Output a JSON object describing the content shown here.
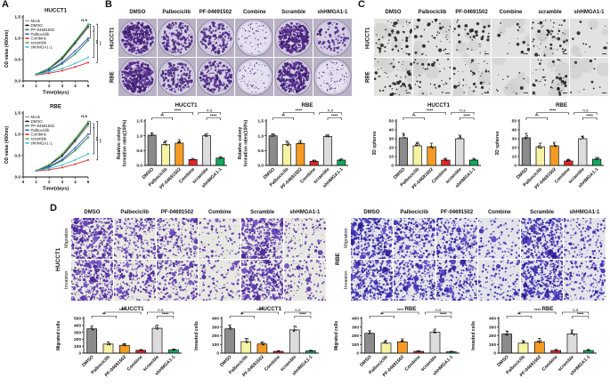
{
  "panelA": {
    "label": "A",
    "xlabel": "Time(days)",
    "ylabel": "OD value (450nm)"
  },
  "panelB": {
    "label": "B",
    "col_headers": [
      "DMSO",
      "Palbociclib",
      "PF-04691502",
      "Combine",
      "Scramble",
      "shHMGA1-1"
    ],
    "row_labels": [
      "HUCCT1",
      "RBE"
    ],
    "image_density": [
      [
        0.95,
        0.55,
        0.5,
        0.1,
        0.88,
        0.22
      ],
      [
        0.92,
        0.5,
        0.62,
        0.08,
        0.85,
        0.14
      ]
    ]
  },
  "panelC": {
    "label": "C",
    "col_headers": [
      "DMSO",
      "Palbociclib",
      "PF-04691502",
      "Combine",
      "scramble",
      "shHMGA1-1"
    ],
    "row_labels": [
      "HUCCT1",
      "RBE"
    ],
    "sphere_counts": [
      [
        30,
        22,
        21,
        7,
        30,
        6
      ],
      [
        28,
        20,
        22,
        6,
        28,
        5
      ]
    ]
  },
  "panelD": {
    "label": "D",
    "groups": [
      {
        "name": "HUCCT1",
        "col_headers": [
          "DMSO",
          "Palbociclib",
          "PF-04691502",
          "Combine",
          "Scramble",
          "shHMGA1-1"
        ],
        "row_labels": [
          "Migration",
          "Invasion"
        ],
        "image_density": [
          [
            0.92,
            0.45,
            0.42,
            0.15,
            0.95,
            0.18
          ],
          [
            0.88,
            0.52,
            0.48,
            0.18,
            0.9,
            0.22
          ]
        ],
        "stain": "violet"
      },
      {
        "name": "RBE",
        "col_headers": [
          "DMSO",
          "Palbociclib",
          "PF-04691502",
          "Combine",
          "Scramble",
          "shHMGA1-1"
        ],
        "row_labels": [
          "Migration",
          "Invasion"
        ],
        "image_density": [
          [
            0.85,
            0.55,
            0.5,
            0.15,
            0.82,
            0.25
          ],
          [
            0.9,
            0.55,
            0.55,
            0.22,
            0.88,
            0.3
          ]
        ],
        "stain": "blue"
      }
    ]
  },
  "colors": {
    "crystal_violet": "#5a2c90",
    "bar_palette": [
      "#8b8b8b",
      "#f6f3a2",
      "#f59b23",
      "#e62528",
      "#dcdcdc",
      "#12a95c"
    ]
  },
  "chart_data": [
    {
      "id": "growth-hucct1",
      "type": "line",
      "title": "HUCCT1",
      "xlabel": "Time(days)",
      "ylabel": "OD value (450nm)",
      "x": [
        1,
        2,
        3,
        4,
        5
      ],
      "xlim": [
        0,
        5
      ],
      "ylim": [
        0,
        1.5
      ],
      "yticks": [
        0,
        0.5,
        1,
        1.5
      ],
      "xticks": [
        0,
        1,
        2,
        3,
        4,
        5
      ],
      "series": [
        {
          "name": "Mock",
          "color": "#9b9b9b",
          "values": [
            0.16,
            0.28,
            0.5,
            0.86,
            1.24
          ]
        },
        {
          "name": "DMSO",
          "color": "#141414",
          "values": [
            0.16,
            0.29,
            0.53,
            0.9,
            1.28
          ]
        },
        {
          "name": "PF-04691502",
          "color": "#1e7d46",
          "values": [
            0.15,
            0.24,
            0.4,
            0.63,
            0.95
          ]
        },
        {
          "name": "Palbociclib",
          "color": "#2d4ec8",
          "values": [
            0.15,
            0.25,
            0.43,
            0.7,
            1.0
          ]
        },
        {
          "name": "Combine",
          "color": "#e62528",
          "values": [
            0.14,
            0.18,
            0.24,
            0.33,
            0.43
          ]
        },
        {
          "name": "scramble",
          "color": "#3fae49",
          "values": [
            0.16,
            0.3,
            0.56,
            0.93,
            1.33
          ]
        },
        {
          "name": "shHMGA1-1",
          "color": "#3bbcd0",
          "values": [
            0.15,
            0.21,
            0.29,
            0.41,
            0.55
          ]
        }
      ],
      "annotation": "n.s",
      "right_brackets": [
        {
          "label": "*",
          "from": "scramble",
          "to": "Palbociclib"
        },
        {
          "label": "***",
          "from": "DMSO",
          "to": "shHMGA1-1"
        },
        {
          "label": "***",
          "from": "scramble",
          "to": "Combine"
        }
      ]
    },
    {
      "id": "growth-rbe",
      "type": "line",
      "title": "RBE",
      "xlabel": "Time(days)",
      "ylabel": "OD value (450nm)",
      "x": [
        1,
        2,
        3,
        4,
        5
      ],
      "xlim": [
        0,
        5
      ],
      "ylim": [
        0,
        1.5
      ],
      "yticks": [
        0,
        0.5,
        1,
        1.5
      ],
      "xticks": [
        0,
        1,
        2,
        3,
        4,
        5
      ],
      "series": [
        {
          "name": "Mock",
          "color": "#9b9b9b",
          "values": [
            0.15,
            0.27,
            0.48,
            0.82,
            1.2
          ]
        },
        {
          "name": "DMSO",
          "color": "#141414",
          "values": [
            0.15,
            0.28,
            0.5,
            0.86,
            1.25
          ]
        },
        {
          "name": "PF-04691502",
          "color": "#1e7d46",
          "values": [
            0.15,
            0.23,
            0.38,
            0.62,
            0.93
          ]
        },
        {
          "name": "Palbociclib",
          "color": "#2d4ec8",
          "values": [
            0.15,
            0.24,
            0.41,
            0.68,
            1.0
          ]
        },
        {
          "name": "Combine",
          "color": "#e62528",
          "values": [
            0.14,
            0.17,
            0.22,
            0.3,
            0.4
          ]
        },
        {
          "name": "scramble",
          "color": "#3fae49",
          "values": [
            0.15,
            0.29,
            0.54,
            0.9,
            1.3
          ]
        },
        {
          "name": "shHMGA1-1",
          "color": "#3bbcd0",
          "values": [
            0.15,
            0.2,
            0.28,
            0.4,
            0.54
          ]
        }
      ],
      "annotation": "n.s",
      "right_brackets": [
        {
          "label": "*",
          "from": "scramble",
          "to": "Palbociclib"
        },
        {
          "label": "***",
          "from": "DMSO",
          "to": "shHMGA1-1"
        },
        {
          "label": "***",
          "from": "scramble",
          "to": "Combine"
        }
      ]
    },
    {
      "id": "colony-hucct1",
      "type": "bar",
      "title": "HUCCT1",
      "ylabel": "Relative colony formation rates(100%)",
      "categories": [
        "DMSO",
        "Palbociclib",
        "PF-04691502",
        "Combine",
        "scramble",
        "shHMGA1-1"
      ],
      "values": [
        1.02,
        0.7,
        0.75,
        0.2,
        1.0,
        0.25
      ],
      "errors": [
        0.08,
        0.13,
        0.12,
        0.04,
        0.07,
        0.05
      ],
      "ylim": [
        0,
        1.5
      ],
      "yticks": [
        0,
        0.5,
        1,
        1.5
      ],
      "colors": [
        "#8b8b8b",
        "#f6f3a2",
        "#f59b23",
        "#e62528",
        "#dcdcdc",
        "#12a95c"
      ],
      "sig": [
        {
          "x1": 0,
          "x2": 1.5,
          "label": "**",
          "tier": 1
        },
        {
          "x1": 0.75,
          "x2": 3,
          "label": "****",
          "tier": 2
        },
        {
          "x1": 3.4,
          "x2": 5,
          "label": "n.s",
          "tier": 2
        },
        {
          "x1": 4,
          "x2": 5,
          "label": "****",
          "tier": 1
        }
      ]
    },
    {
      "id": "colony-rbe",
      "type": "bar",
      "title": "RBE",
      "ylabel": "Relative colony formation rates(100%)",
      "categories": [
        "DMSO",
        "Palbociclib",
        "PF-04691502",
        "Combine",
        "scramble",
        "shHMGA1-1"
      ],
      "values": [
        1.0,
        0.7,
        0.74,
        0.14,
        0.98,
        0.18
      ],
      "errors": [
        0.07,
        0.12,
        0.1,
        0.04,
        0.06,
        0.04
      ],
      "ylim": [
        0,
        1.5
      ],
      "yticks": [
        0,
        0.5,
        1,
        1.5
      ],
      "colors": [
        "#8b8b8b",
        "#f6f3a2",
        "#f59b23",
        "#e62528",
        "#dcdcdc",
        "#12a95c"
      ],
      "sig": [
        {
          "x1": 0,
          "x2": 1.5,
          "label": "**",
          "tier": 1
        },
        {
          "x1": 0.75,
          "x2": 3,
          "label": "****",
          "tier": 2
        },
        {
          "x1": 3.4,
          "x2": 5,
          "label": "n.s",
          "tier": 2
        },
        {
          "x1": 4,
          "x2": 5,
          "label": "****",
          "tier": 1
        }
      ]
    },
    {
      "id": "spheres-hucct1",
      "type": "bar",
      "title": "HUCCT1",
      "ylabel": "3D spheres",
      "categories": [
        "DMSO",
        "Palbociclib",
        "PF-04691502",
        "Combine",
        "scramble",
        "shHMGA1-1"
      ],
      "values": [
        31,
        22,
        21,
        6,
        30,
        6
      ],
      "errors": [
        5,
        4,
        4,
        2,
        4,
        2
      ],
      "ylim": [
        0,
        50
      ],
      "yticks": [
        0,
        10,
        20,
        30,
        40,
        50
      ],
      "colors": [
        "#8b8b8b",
        "#f6f3a2",
        "#f59b23",
        "#e62528",
        "#dcdcdc",
        "#12a95c"
      ],
      "sig": [
        {
          "x1": 0,
          "x2": 1.5,
          "label": "**",
          "tier": 1
        },
        {
          "x1": 0.75,
          "x2": 3,
          "label": "****",
          "tier": 2
        },
        {
          "x1": 3.4,
          "x2": 5,
          "label": "n.s",
          "tier": 2
        },
        {
          "x1": 4,
          "x2": 5,
          "label": "****",
          "tier": 1
        }
      ]
    },
    {
      "id": "spheres-rbe",
      "type": "bar",
      "title": "RBE",
      "ylabel": "3D spheres",
      "categories": [
        "DMSO",
        "Palbociclib",
        "PF-04691502",
        "Combine",
        "scramble",
        "shHMGA1-1"
      ],
      "values": [
        31,
        21,
        22,
        5,
        30,
        7
      ],
      "errors": [
        5,
        4,
        4,
        2,
        3,
        2
      ],
      "ylim": [
        0,
        50
      ],
      "yticks": [
        0,
        10,
        20,
        30,
        40,
        50
      ],
      "colors": [
        "#8b8b8b",
        "#f6f3a2",
        "#f59b23",
        "#e62528",
        "#dcdcdc",
        "#12a95c"
      ],
      "sig": [
        {
          "x1": 0,
          "x2": 1.5,
          "label": "**",
          "tier": 1
        },
        {
          "x1": 0.75,
          "x2": 3,
          "label": "****",
          "tier": 2
        },
        {
          "x1": 3.4,
          "x2": 5,
          "label": "n.s",
          "tier": 2
        },
        {
          "x1": 4,
          "x2": 5,
          "label": "****",
          "tier": 1
        }
      ]
    },
    {
      "id": "migration-hucct1",
      "type": "bar",
      "title": "HUCCT1",
      "ylabel": "Migrated cells",
      "categories": [
        "DMSO",
        "Palbociclib",
        "PF-04691502",
        "Combine",
        "scramble",
        "shHMGA1-1"
      ],
      "values": [
        350,
        130,
        112,
        40,
        358,
        45
      ],
      "errors": [
        40,
        32,
        25,
        12,
        45,
        14
      ],
      "ylim": [
        0,
        500
      ],
      "yticks": [
        0,
        100,
        200,
        300,
        400,
        500
      ],
      "colors": [
        "#8b8b8b",
        "#f6f3a2",
        "#f59b23",
        "#e62528",
        "#dcdcdc",
        "#12a95c"
      ],
      "sig": [
        {
          "x1": 0,
          "x2": 1.5,
          "label": "**",
          "tier": 1
        },
        {
          "x1": 0.75,
          "x2": 3,
          "label": "****",
          "tier": 2
        },
        {
          "x1": 3.4,
          "x2": 5,
          "label": "n.s",
          "tier": 2
        },
        {
          "x1": 4,
          "x2": 5,
          "label": "****",
          "tier": 1
        }
      ]
    },
    {
      "id": "invasion-hucct1",
      "type": "bar",
      "title": "HUCCT1",
      "ylabel": "Invasted cells",
      "categories": [
        "DMSO",
        "Palbociclib",
        "PF-04691502",
        "Combine",
        "scramble",
        "shHMGA1-1"
      ],
      "values": [
        280,
        132,
        105,
        20,
        268,
        25
      ],
      "errors": [
        45,
        38,
        25,
        8,
        42,
        8
      ],
      "ylim": [
        0,
        400
      ],
      "yticks": [
        0,
        100,
        200,
        300,
        400
      ],
      "colors": [
        "#8b8b8b",
        "#f6f3a2",
        "#f59b23",
        "#e62528",
        "#dcdcdc",
        "#12a95c"
      ],
      "sig": [
        {
          "x1": 0,
          "x2": 1.5,
          "label": "**",
          "tier": 1
        },
        {
          "x1": 0.75,
          "x2": 3,
          "label": "****",
          "tier": 2
        },
        {
          "x1": 3.4,
          "x2": 5,
          "label": "n.s",
          "tier": 2
        },
        {
          "x1": 4,
          "x2": 5,
          "label": "****",
          "tier": 1
        }
      ]
    },
    {
      "id": "migration-rbe",
      "type": "bar",
      "title": "RBE",
      "ylabel": "Migrated cells",
      "categories": [
        "DMSO",
        "Palbociclib",
        "PF-04691502",
        "Combine",
        "scramble",
        "shHMGA1-1"
      ],
      "values": [
        228,
        115,
        130,
        20,
        242,
        15
      ],
      "errors": [
        30,
        30,
        35,
        8,
        35,
        6
      ],
      "ylim": [
        0,
        400
      ],
      "yticks": [
        0,
        100,
        200,
        300,
        400
      ],
      "colors": [
        "#8b8b8b",
        "#f6f3a2",
        "#f59b23",
        "#e62528",
        "#dcdcdc",
        "#12a95c"
      ],
      "sig": [
        {
          "x1": 0,
          "x2": 1.5,
          "label": "**",
          "tier": 1
        },
        {
          "x1": 0.75,
          "x2": 3,
          "label": "****",
          "tier": 2
        },
        {
          "x1": 3.4,
          "x2": 5,
          "label": "n.s",
          "tier": 2
        },
        {
          "x1": 4,
          "x2": 5,
          "label": "****",
          "tier": 1
        }
      ]
    },
    {
      "id": "invasion-rbe",
      "type": "bar",
      "title": "RBE",
      "ylabel": "Invasted cells",
      "categories": [
        "DMSO",
        "Palbociclib",
        "PF-04691502",
        "Combine",
        "scramble",
        "shHMGA1-1"
      ],
      "values": [
        220,
        115,
        128,
        30,
        222,
        30
      ],
      "errors": [
        35,
        30,
        42,
        12,
        45,
        12
      ],
      "ylim": [
        0,
        400
      ],
      "yticks": [
        0,
        100,
        200,
        300,
        400
      ],
      "colors": [
        "#8b8b8b",
        "#f6f3a2",
        "#f59b23",
        "#e62528",
        "#dcdcdc",
        "#12a95c"
      ],
      "sig": [
        {
          "x1": 0,
          "x2": 1.5,
          "label": "**",
          "tier": 1
        },
        {
          "x1": 0.75,
          "x2": 3,
          "label": "****",
          "tier": 2
        },
        {
          "x1": 3.4,
          "x2": 5,
          "label": "n.s",
          "tier": 2
        },
        {
          "x1": 4,
          "x2": 5,
          "label": "****",
          "tier": 1
        }
      ]
    }
  ]
}
